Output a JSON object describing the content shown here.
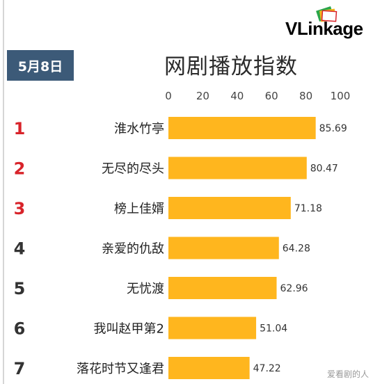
{
  "brand": {
    "logo_text": "VLinkage"
  },
  "header": {
    "date": "5月8日",
    "title": "网剧播放指数"
  },
  "watermark": "爱看剧的人",
  "colors": {
    "bar": "#FFB61E",
    "rank_top": "#D8232A",
    "rank_other": "#333333",
    "badge": "#3C5A78"
  },
  "chart_data": {
    "type": "bar",
    "orientation": "horizontal",
    "axis_position": "top",
    "xlim": [
      0,
      100
    ],
    "xticks": [
      0,
      20,
      40,
      60,
      80,
      100
    ],
    "ranks": [
      "1",
      "2",
      "3",
      "4",
      "5",
      "6",
      "7"
    ],
    "categories": [
      "淮水竹亭",
      "无尽的尽头",
      "榜上佳婿",
      "亲爱的仇敌",
      "无忧渡",
      "我叫赵甲第2",
      "落花时节又逢君"
    ],
    "values": [
      85.69,
      80.47,
      71.18,
      64.28,
      62.96,
      51.04,
      47.22
    ],
    "value_labels": [
      "85.69",
      "80.47",
      "71.18",
      "64.28",
      "62.96",
      "51.04",
      "47.22"
    ]
  }
}
